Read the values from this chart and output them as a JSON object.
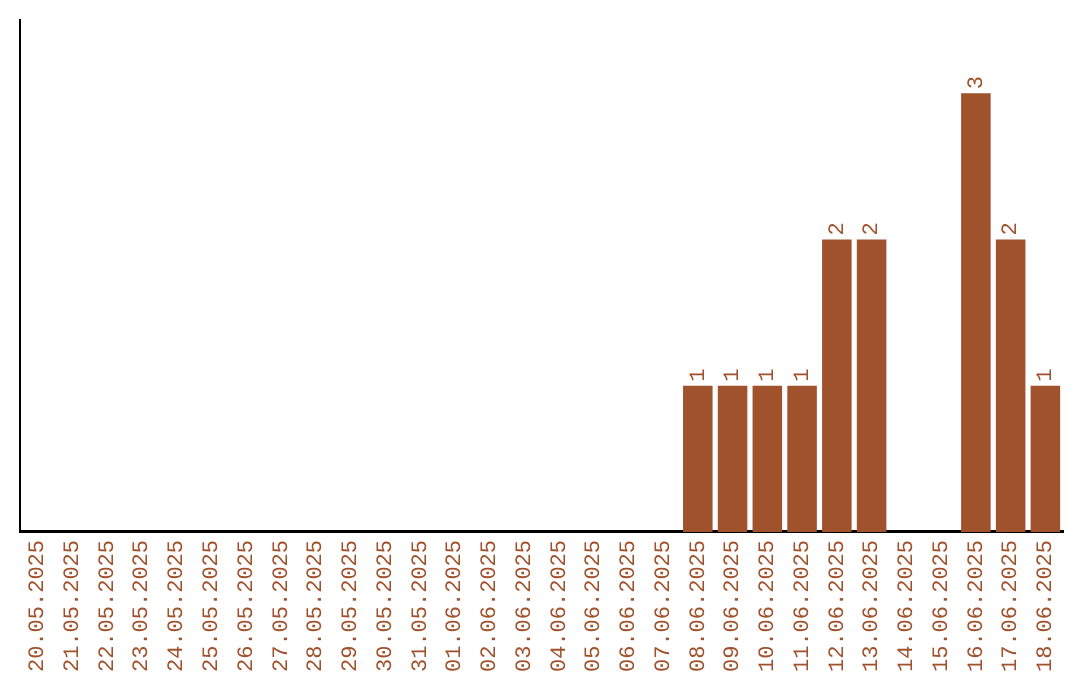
{
  "chart_data": {
    "type": "bar",
    "categories": [
      "20.05.2025",
      "21.05.2025",
      "22.05.2025",
      "23.05.2025",
      "24.05.2025",
      "25.05.2025",
      "26.05.2025",
      "27.05.2025",
      "28.05.2025",
      "29.05.2025",
      "30.05.2025",
      "31.05.2025",
      "01.06.2025",
      "02.06.2025",
      "03.06.2025",
      "04.06.2025",
      "05.06.2025",
      "06.06.2025",
      "07.06.2025",
      "08.06.2025",
      "09.06.2025",
      "10.06.2025",
      "11.06.2025",
      "12.06.2025",
      "13.06.2025",
      "14.06.2025",
      "15.06.2025",
      "16.06.2025",
      "17.06.2025",
      "18.06.2025"
    ],
    "values": [
      null,
      null,
      null,
      null,
      null,
      null,
      null,
      null,
      null,
      null,
      null,
      null,
      null,
      null,
      null,
      null,
      null,
      null,
      null,
      1,
      1,
      1,
      1,
      2,
      2,
      null,
      null,
      3,
      2,
      1
    ],
    "value_labels": [
      null,
      null,
      null,
      null,
      null,
      null,
      null,
      null,
      null,
      null,
      null,
      null,
      null,
      null,
      null,
      null,
      null,
      null,
      null,
      "1",
      "1",
      "1",
      "1",
      "2",
      "2",
      null,
      null,
      "3",
      "2",
      "1"
    ],
    "color": "#a0522d",
    "tick_labels": "x",
    "grid": false,
    "legend": false
  }
}
